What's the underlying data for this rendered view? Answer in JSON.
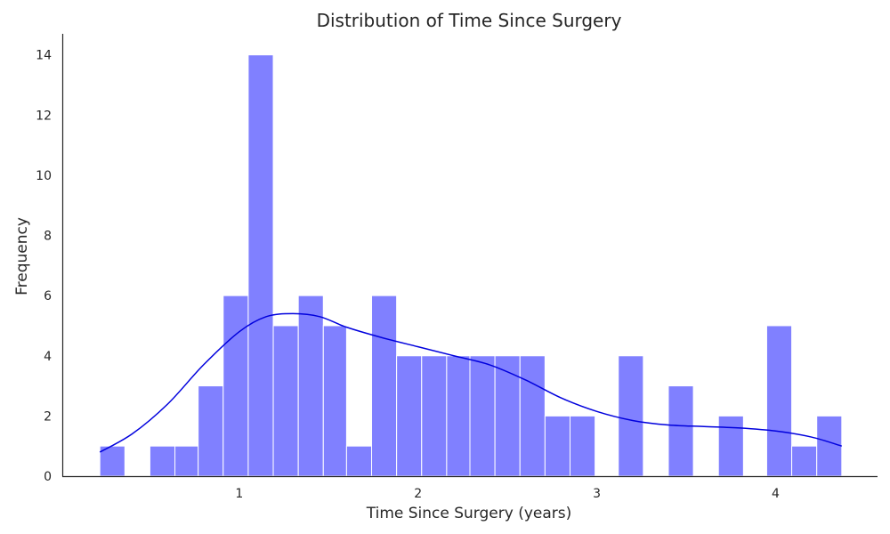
{
  "chart_data": {
    "type": "bar",
    "title": "Distribution of Time Since Surgery",
    "xlabel": "Time Since Surgery (years)",
    "ylabel": "Frequency",
    "xlim": [
      0.01,
      4.57
    ],
    "ylim": [
      0,
      14.7
    ],
    "xticks": [
      1,
      2,
      3,
      4
    ],
    "yticks": [
      0,
      2,
      4,
      6,
      8,
      10,
      12,
      14
    ],
    "grid": false,
    "bins": [
      {
        "start": 0.22,
        "end": 0.36,
        "count": 1
      },
      {
        "start": 0.36,
        "end": 0.5,
        "count": 0
      },
      {
        "start": 0.5,
        "end": 0.64,
        "count": 1
      },
      {
        "start": 0.64,
        "end": 0.77,
        "count": 1
      },
      {
        "start": 0.77,
        "end": 0.91,
        "count": 3
      },
      {
        "start": 0.91,
        "end": 1.05,
        "count": 6
      },
      {
        "start": 1.05,
        "end": 1.19,
        "count": 14
      },
      {
        "start": 1.19,
        "end": 1.33,
        "count": 5
      },
      {
        "start": 1.33,
        "end": 1.47,
        "count": 6
      },
      {
        "start": 1.47,
        "end": 1.6,
        "count": 5
      },
      {
        "start": 1.6,
        "end": 1.74,
        "count": 1
      },
      {
        "start": 1.74,
        "end": 1.88,
        "count": 6
      },
      {
        "start": 1.88,
        "end": 2.02,
        "count": 4
      },
      {
        "start": 2.02,
        "end": 2.16,
        "count": 4
      },
      {
        "start": 2.16,
        "end": 2.29,
        "count": 4
      },
      {
        "start": 2.29,
        "end": 2.43,
        "count": 4
      },
      {
        "start": 2.43,
        "end": 2.57,
        "count": 4
      },
      {
        "start": 2.57,
        "end": 2.71,
        "count": 4
      },
      {
        "start": 2.71,
        "end": 2.85,
        "count": 2
      },
      {
        "start": 2.85,
        "end": 2.99,
        "count": 2
      },
      {
        "start": 2.99,
        "end": 3.12,
        "count": 0
      },
      {
        "start": 3.12,
        "end": 3.26,
        "count": 4
      },
      {
        "start": 3.26,
        "end": 3.4,
        "count": 0
      },
      {
        "start": 3.4,
        "end": 3.54,
        "count": 3
      },
      {
        "start": 3.54,
        "end": 3.68,
        "count": 0
      },
      {
        "start": 3.68,
        "end": 3.82,
        "count": 2
      },
      {
        "start": 3.82,
        "end": 3.95,
        "count": 0
      },
      {
        "start": 3.95,
        "end": 4.09,
        "count": 5
      },
      {
        "start": 4.09,
        "end": 4.23,
        "count": 1
      },
      {
        "start": 4.23,
        "end": 4.37,
        "count": 2
      }
    ],
    "kde": {
      "x": [
        0.22,
        0.4,
        0.6,
        0.8,
        1.0,
        1.15,
        1.3,
        1.45,
        1.6,
        1.8,
        2.0,
        2.2,
        2.4,
        2.6,
        2.8,
        3.0,
        3.2,
        3.4,
        3.6,
        3.8,
        4.0,
        4.2,
        4.37
      ],
      "y": [
        0.8,
        1.4,
        2.4,
        3.7,
        4.8,
        5.3,
        5.4,
        5.3,
        4.95,
        4.6,
        4.3,
        4.0,
        3.7,
        3.2,
        2.6,
        2.15,
        1.85,
        1.7,
        1.65,
        1.6,
        1.5,
        1.3,
        1.0
      ],
      "color": "#0000dd"
    },
    "bar_color": "#8080ff"
  }
}
